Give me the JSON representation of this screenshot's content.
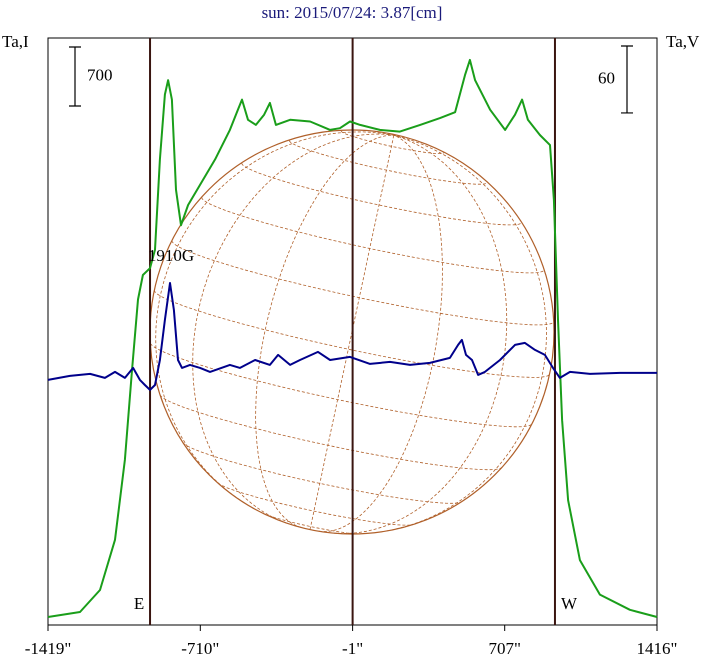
{
  "chart_data": {
    "type": "line",
    "title": "sun: 2015/07/24: 3.87[cm]",
    "y_label": "Ta,I",
    "y2_label": "Ta,V",
    "annotation": "1910G",
    "xlim": [
      -1419,
      1416
    ],
    "xticks": [
      {
        "value": -1419,
        "label": "-1419\""
      },
      {
        "value": -710,
        "label": "-710\""
      },
      {
        "value": -1,
        "label": "-1\""
      },
      {
        "value": 707,
        "label": "707\""
      },
      {
        "value": 1416,
        "label": "1416\""
      }
    ],
    "ylim": [
      0,
      6960
    ],
    "y2lim": [
      -225,
      301
    ],
    "scale_bars": [
      {
        "value": 700,
        "axis": "y"
      },
      {
        "value": 60,
        "axis": "y2"
      }
    ],
    "vlines": [
      {
        "x": -944,
        "label": "E"
      },
      {
        "x": -1
      },
      {
        "x": 941,
        "label": "W"
      }
    ],
    "series": [
      {
        "name": "Ta,I",
        "color": "#1a9e1a",
        "x": [
          -1419,
          -1270,
          -1177,
          -1107,
          -1061,
          -1028,
          -1000,
          -977,
          -944,
          -921,
          -898,
          -875,
          -860,
          -842,
          -823,
          -800,
          -767,
          -711,
          -641,
          -572,
          -535,
          -516,
          -488,
          -451,
          -413,
          -386,
          -358,
          -292,
          -199,
          -106,
          -60,
          -13,
          34,
          126,
          219,
          313,
          406,
          476,
          522,
          545,
          569,
          639,
          709,
          755,
          788,
          815,
          871,
          918,
          936,
          955,
          974,
          1002,
          1057,
          1150,
          1290,
          1416
        ],
        "values": [
          95,
          154,
          415,
          1010,
          1960,
          3020,
          3860,
          4150,
          4230,
          4450,
          5520,
          6290,
          6460,
          6230,
          5160,
          4740,
          4980,
          5220,
          5520,
          5870,
          6110,
          6230,
          5990,
          5930,
          6050,
          6190,
          5930,
          5990,
          5970,
          5870,
          5890,
          5970,
          5930,
          5870,
          5850,
          5930,
          6010,
          6080,
          6520,
          6700,
          6460,
          6110,
          5870,
          6050,
          6230,
          5990,
          5810,
          5690,
          5040,
          3620,
          2430,
          1480,
          770,
          360,
          180,
          95
        ]
      },
      {
        "name": "Ta,V",
        "color": "#00008b",
        "axis": "y2",
        "x": [
          -1419,
          -1317,
          -1223,
          -1154,
          -1107,
          -1061,
          -1023,
          -991,
          -968,
          -944,
          -921,
          -898,
          -875,
          -851,
          -833,
          -814,
          -795,
          -758,
          -711,
          -665,
          -572,
          -525,
          -455,
          -386,
          -348,
          -292,
          -246,
          -162,
          -106,
          -13,
          80,
          173,
          266,
          359,
          452,
          490,
          508,
          527,
          555,
          583,
          615,
          685,
          755,
          801,
          848,
          894,
          932,
          964,
          1011,
          1104,
          1244,
          1416
        ],
        "values": [
          -5.4,
          -1.8,
          0,
          -3.6,
          1.8,
          -3.6,
          5.4,
          -5.4,
          -9.9,
          -14.3,
          -9.9,
          12.5,
          48.4,
          81.5,
          57.3,
          12.5,
          5.4,
          8.1,
          5.4,
          1.8,
          8.1,
          5.4,
          12.5,
          8.1,
          17,
          8.1,
          12.5,
          19.7,
          12.5,
          15.2,
          9,
          10.8,
          8.1,
          9.9,
          14.3,
          26,
          30.5,
          17,
          12.5,
          -0.9,
          1.8,
          12.5,
          26,
          27.8,
          21.5,
          17,
          5.4,
          -3.6,
          1.8,
          0,
          0.9,
          0.9
        ]
      }
    ]
  }
}
